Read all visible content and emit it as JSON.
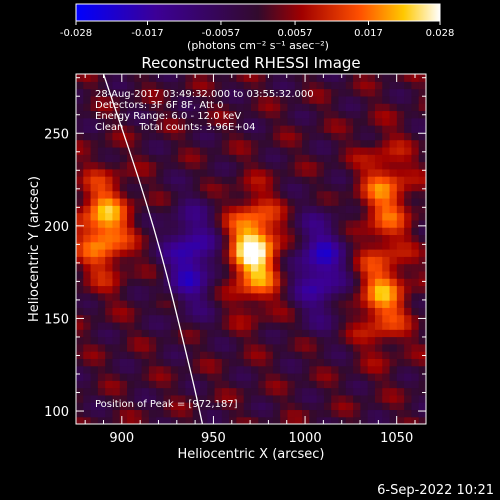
{
  "chart_data": {
    "type": "heatmap",
    "title": "Reconstructed RHESSI Image",
    "xlabel": "Heliocentric X (arcsec)",
    "ylabel": "Heliocentric Y (arcsec)",
    "xlim": [
      875,
      1066
    ],
    "ylim": [
      93,
      282
    ],
    "x_ticks": [
      900,
      950,
      1000,
      1050
    ],
    "y_ticks": [
      100,
      150,
      200,
      250
    ],
    "colorbar": {
      "tick_labels": [
        "-0.028",
        "-0.017",
        "-0.0057",
        "0.0057",
        "0.017",
        "0.028"
      ],
      "tick_values": [
        -0.028,
        -0.017,
        -0.0057,
        0.0057,
        0.017,
        0.028
      ],
      "range": [
        -0.028,
        0.028
      ],
      "units": "(photons cm⁻² s⁻¹ asec⁻²)",
      "colormap": [
        "#0000ff",
        "#3c0096",
        "#320a2d",
        "#a00000",
        "#ff5000",
        "#ffc800",
        "#ffffff"
      ]
    },
    "annotations": [
      "28-Aug-2017 03:49:32.000 to 03:55:32.000",
      "Detectors: 3F 6F 8F, Att 0",
      "Energy Range: 6.0 - 12.0 keV",
      "Clean     Total counts: 3.96E+04"
    ],
    "peak_label": "Position of Peak = [972,187]",
    "peak": [
      972,
      187
    ],
    "sources": [
      {
        "x": 972,
        "y": 187,
        "amplitude": 0.028
      },
      {
        "x": 890,
        "y": 200,
        "amplitude": 0.022
      },
      {
        "x": 1042,
        "y": 162,
        "amplitude": 0.018
      },
      {
        "x": 1044,
        "y": 218,
        "amplitude": 0.016
      },
      {
        "x": 938,
        "y": 183,
        "amplitude": -0.02
      },
      {
        "x": 1008,
        "y": 178,
        "amplitude": -0.02
      }
    ],
    "limb": [
      [
        890,
        282
      ],
      [
        918,
        200
      ],
      [
        938,
        120
      ],
      [
        944,
        93
      ]
    ]
  },
  "timestamp": "6-Sep-2022 10:21"
}
